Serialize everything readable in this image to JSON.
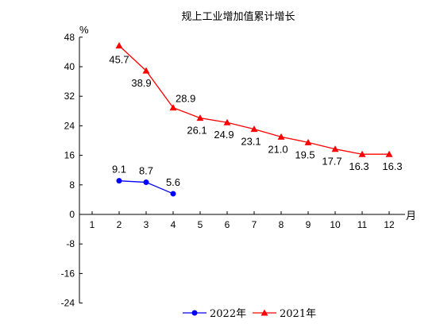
{
  "chart_data": {
    "type": "line",
    "title": "规上工业增加值累计增长",
    "y_unit": "%",
    "x_unit": "月",
    "x": [
      1,
      2,
      3,
      4,
      5,
      6,
      7,
      8,
      9,
      10,
      11,
      12
    ],
    "ylim": [
      -24,
      48
    ],
    "yticks": [
      -24,
      -16,
      -8,
      0,
      8,
      16,
      24,
      32,
      40,
      48
    ],
    "grid": false,
    "legend_position": "bottom",
    "series": [
      {
        "name": "2022年",
        "color": "#0000ff",
        "marker": "circle",
        "x": [
          2,
          3,
          4
        ],
        "values": [
          9.1,
          8.7,
          5.6
        ],
        "labels": [
          "9.1",
          "8.7",
          "5.6"
        ]
      },
      {
        "name": "2021年",
        "color": "#ff0000",
        "marker": "triangle",
        "x": [
          2,
          3,
          4,
          5,
          6,
          7,
          8,
          9,
          10,
          11,
          12
        ],
        "values": [
          45.7,
          38.9,
          28.9,
          26.1,
          24.9,
          23.1,
          21.0,
          19.5,
          17.7,
          16.3,
          16.3
        ],
        "labels": [
          "45.7",
          "38.9",
          "28.9",
          "26.1",
          "24.9",
          "23.1",
          "21.0",
          "19.5",
          "17.7",
          "16.3",
          "16.3"
        ]
      }
    ]
  }
}
